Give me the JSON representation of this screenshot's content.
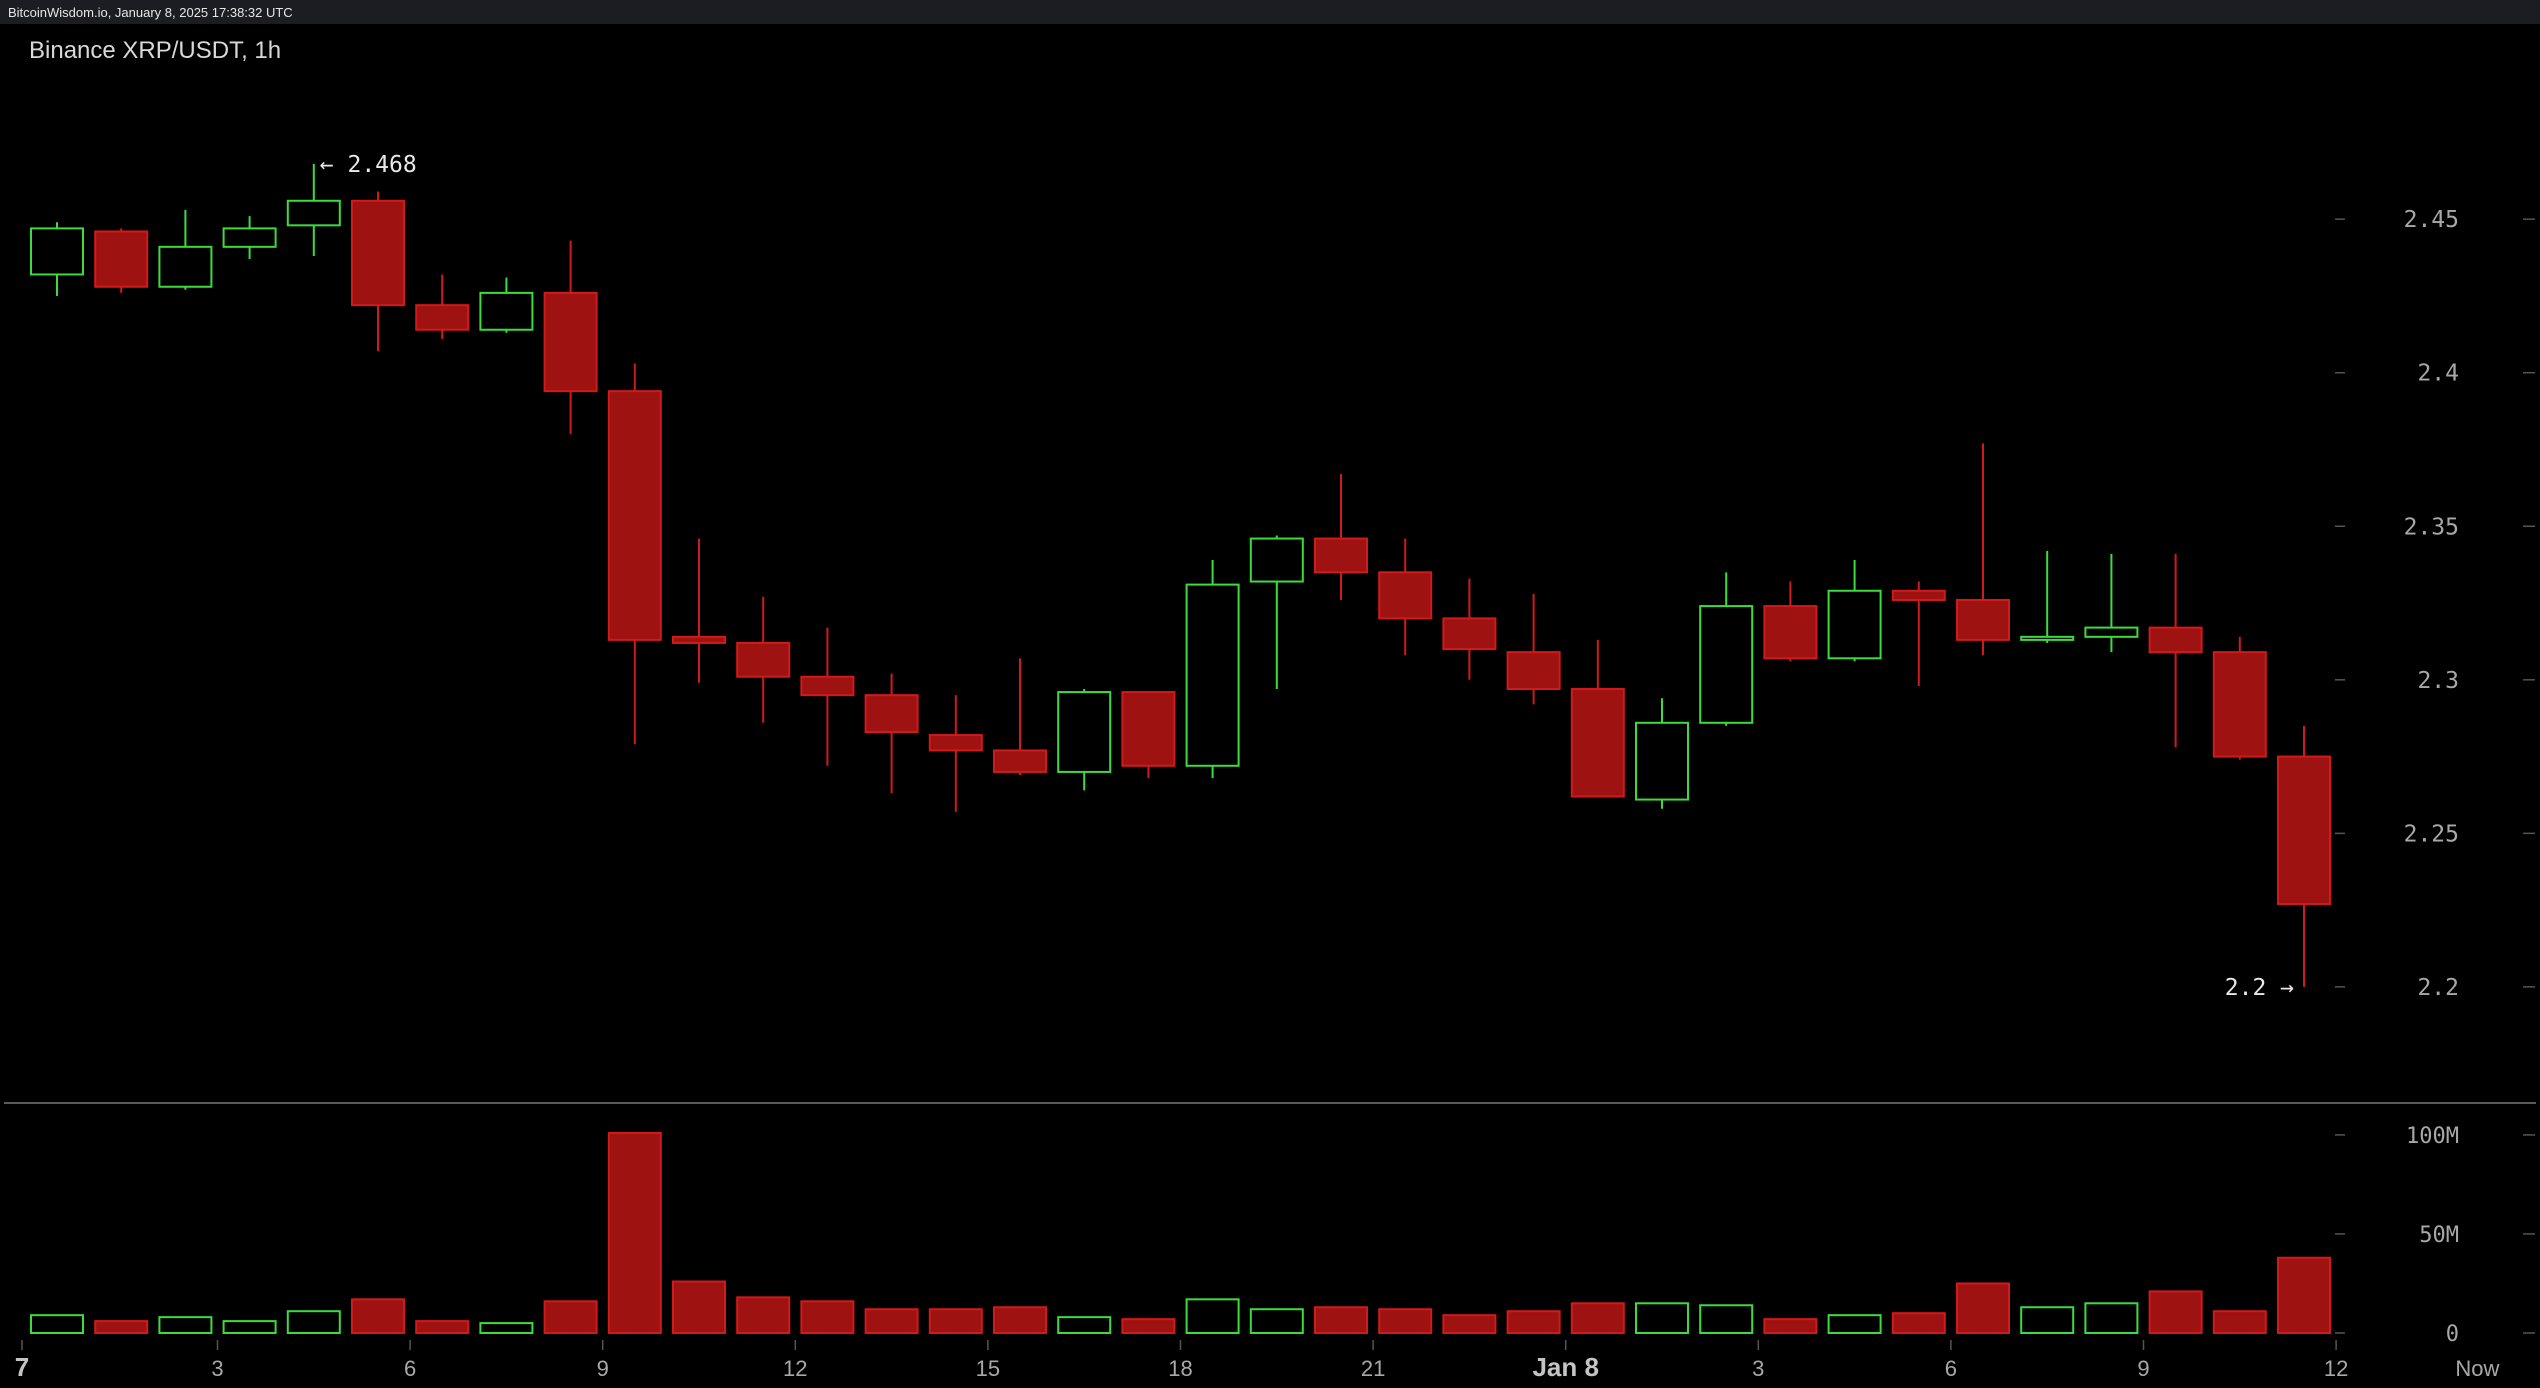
{
  "header": {
    "source": "BitcoinWisdom.io, January 8, 2025 17:38:32 UTC",
    "title": "Binance XRP/USDT, 1h"
  },
  "colors": {
    "up": "#3ddc3d",
    "down": "#d11a1a",
    "down_fill": "#9e1212",
    "axis_text": "#a8a8a8",
    "background": "#000000"
  },
  "chart_data": {
    "type": "candlestick",
    "title": "Binance XRP/USDT, 1h",
    "price_ylim": [
      2.17,
      2.495
    ],
    "price_ticks": [
      2.2,
      2.25,
      2.3,
      2.35,
      2.4,
      2.45
    ],
    "price_tick_labels": [
      "2.2",
      "2.25",
      "2.3",
      "2.35",
      "2.4",
      "2.45"
    ],
    "volume_ylim": [
      0,
      104000000
    ],
    "volume_ticks": [
      0,
      50000000,
      100000000
    ],
    "volume_tick_labels": [
      "0",
      "50M",
      "100M"
    ],
    "x_ticks": [
      {
        "index": 0,
        "label": "7",
        "bold": true
      },
      {
        "index": 2.5,
        "label": "3",
        "bold": false
      },
      {
        "index": 5.5,
        "label": "6",
        "bold": false
      },
      {
        "index": 8.5,
        "label": "9",
        "bold": false
      },
      {
        "index": 11.5,
        "label": "12",
        "bold": false
      },
      {
        "index": 14.5,
        "label": "15",
        "bold": false
      },
      {
        "index": 17.5,
        "label": "18",
        "bold": false
      },
      {
        "index": 20.5,
        "label": "21",
        "bold": false
      },
      {
        "index": 23.5,
        "label": "Jan 8",
        "bold": true
      },
      {
        "index": 26.5,
        "label": "3",
        "bold": false
      },
      {
        "index": 29.5,
        "label": "6",
        "bold": false
      },
      {
        "index": 32.5,
        "label": "9",
        "bold": false
      },
      {
        "index": 35.5,
        "label": "12",
        "bold": false
      },
      {
        "index": 37.7,
        "label": "Now",
        "bold": false
      }
    ],
    "annotations": {
      "high": {
        "text": "← 2.468",
        "value": 2.468,
        "index": 4
      },
      "low": {
        "text": "2.2 →",
        "value": 2.2,
        "index": 35
      }
    },
    "candles": [
      {
        "o": 2.432,
        "h": 2.449,
        "l": 2.425,
        "c": 2.447,
        "v": 9000000
      },
      {
        "o": 2.446,
        "h": 2.447,
        "l": 2.426,
        "c": 2.428,
        "v": 6000000
      },
      {
        "o": 2.428,
        "h": 2.453,
        "l": 2.427,
        "c": 2.441,
        "v": 8000000
      },
      {
        "o": 2.441,
        "h": 2.451,
        "l": 2.437,
        "c": 2.447,
        "v": 6000000
      },
      {
        "o": 2.448,
        "h": 2.468,
        "l": 2.438,
        "c": 2.456,
        "v": 11000000
      },
      {
        "o": 2.456,
        "h": 2.459,
        "l": 2.407,
        "c": 2.422,
        "v": 17000000
      },
      {
        "o": 2.422,
        "h": 2.432,
        "l": 2.411,
        "c": 2.414,
        "v": 6000000
      },
      {
        "o": 2.414,
        "h": 2.431,
        "l": 2.413,
        "c": 2.426,
        "v": 5000000
      },
      {
        "o": 2.426,
        "h": 2.443,
        "l": 2.38,
        "c": 2.394,
        "v": 16000000
      },
      {
        "o": 2.394,
        "h": 2.403,
        "l": 2.279,
        "c": 2.313,
        "v": 101000000
      },
      {
        "o": 2.314,
        "h": 2.346,
        "l": 2.299,
        "c": 2.312,
        "v": 26000000
      },
      {
        "o": 2.312,
        "h": 2.327,
        "l": 2.286,
        "c": 2.301,
        "v": 18000000
      },
      {
        "o": 2.301,
        "h": 2.317,
        "l": 2.272,
        "c": 2.295,
        "v": 16000000
      },
      {
        "o": 2.295,
        "h": 2.302,
        "l": 2.263,
        "c": 2.283,
        "v": 12000000
      },
      {
        "o": 2.282,
        "h": 2.295,
        "l": 2.257,
        "c": 2.277,
        "v": 12000000
      },
      {
        "o": 2.277,
        "h": 2.307,
        "l": 2.269,
        "c": 2.27,
        "v": 13000000
      },
      {
        "o": 2.27,
        "h": 2.297,
        "l": 2.264,
        "c": 2.296,
        "v": 8000000
      },
      {
        "o": 2.296,
        "h": 2.296,
        "l": 2.268,
        "c": 2.272,
        "v": 7000000
      },
      {
        "o": 2.272,
        "h": 2.339,
        "l": 2.268,
        "c": 2.331,
        "v": 17000000
      },
      {
        "o": 2.332,
        "h": 2.347,
        "l": 2.297,
        "c": 2.346,
        "v": 12000000
      },
      {
        "o": 2.346,
        "h": 2.367,
        "l": 2.326,
        "c": 2.335,
        "v": 13000000
      },
      {
        "o": 2.335,
        "h": 2.346,
        "l": 2.308,
        "c": 2.32,
        "v": 12000000
      },
      {
        "o": 2.32,
        "h": 2.333,
        "l": 2.3,
        "c": 2.31,
        "v": 9000000
      },
      {
        "o": 2.309,
        "h": 2.328,
        "l": 2.292,
        "c": 2.297,
        "v": 11000000
      },
      {
        "o": 2.297,
        "h": 2.313,
        "l": 2.262,
        "c": 2.262,
        "v": 15000000
      },
      {
        "o": 2.261,
        "h": 2.294,
        "l": 2.258,
        "c": 2.286,
        "v": 15000000
      },
      {
        "o": 2.286,
        "h": 2.335,
        "l": 2.285,
        "c": 2.324,
        "v": 14000000
      },
      {
        "o": 2.324,
        "h": 2.332,
        "l": 2.306,
        "c": 2.307,
        "v": 7000000
      },
      {
        "o": 2.307,
        "h": 2.339,
        "l": 2.306,
        "c": 2.329,
        "v": 9000000
      },
      {
        "o": 2.329,
        "h": 2.332,
        "l": 2.298,
        "c": 2.326,
        "v": 10000000
      },
      {
        "o": 2.326,
        "h": 2.377,
        "l": 2.308,
        "c": 2.313,
        "v": 25000000
      },
      {
        "o": 2.313,
        "h": 2.342,
        "l": 2.312,
        "c": 2.314,
        "v": 13000000
      },
      {
        "o": 2.314,
        "h": 2.341,
        "l": 2.309,
        "c": 2.317,
        "v": 15000000
      },
      {
        "o": 2.317,
        "h": 2.341,
        "l": 2.278,
        "c": 2.309,
        "v": 21000000
      },
      {
        "o": 2.309,
        "h": 2.314,
        "l": 2.274,
        "c": 2.275,
        "v": 11000000
      },
      {
        "o": 2.275,
        "h": 2.285,
        "l": 2.2,
        "c": 2.227,
        "v": 38000000
      }
    ]
  }
}
